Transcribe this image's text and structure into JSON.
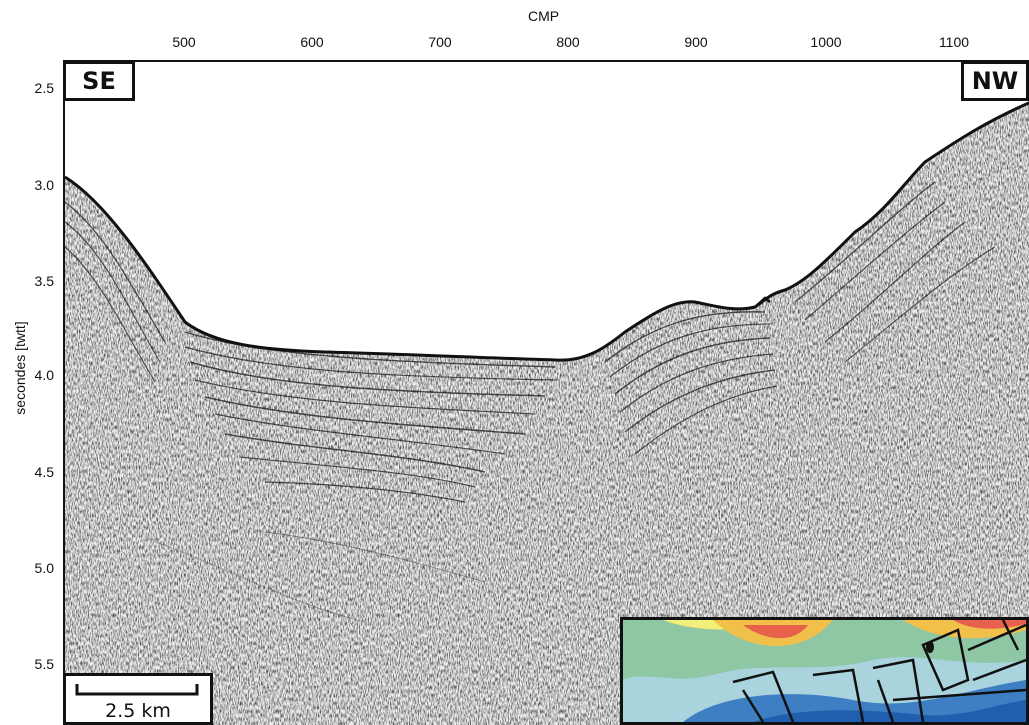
{
  "axes": {
    "x_title": "CMP",
    "x_ticks": [
      "500",
      "600",
      "700",
      "800",
      "900",
      "1000",
      "1100"
    ],
    "y_title": "secondes [twtt]",
    "y_ticks": [
      "2.5",
      "3.0",
      "3.5",
      "4.0",
      "4.5",
      "5.0",
      "5.5"
    ]
  },
  "labels": {
    "left_direction": "SE",
    "right_direction": "NW"
  },
  "scale_bar": {
    "label": "2.5 km"
  },
  "colors": {
    "seafloor_line": "#111111",
    "inset_bathymetry": [
      "#e5484d",
      "#f1c04a",
      "#f2ef7a",
      "#7fbf72",
      "#9fd3e8",
      "#1f5fae"
    ]
  }
}
